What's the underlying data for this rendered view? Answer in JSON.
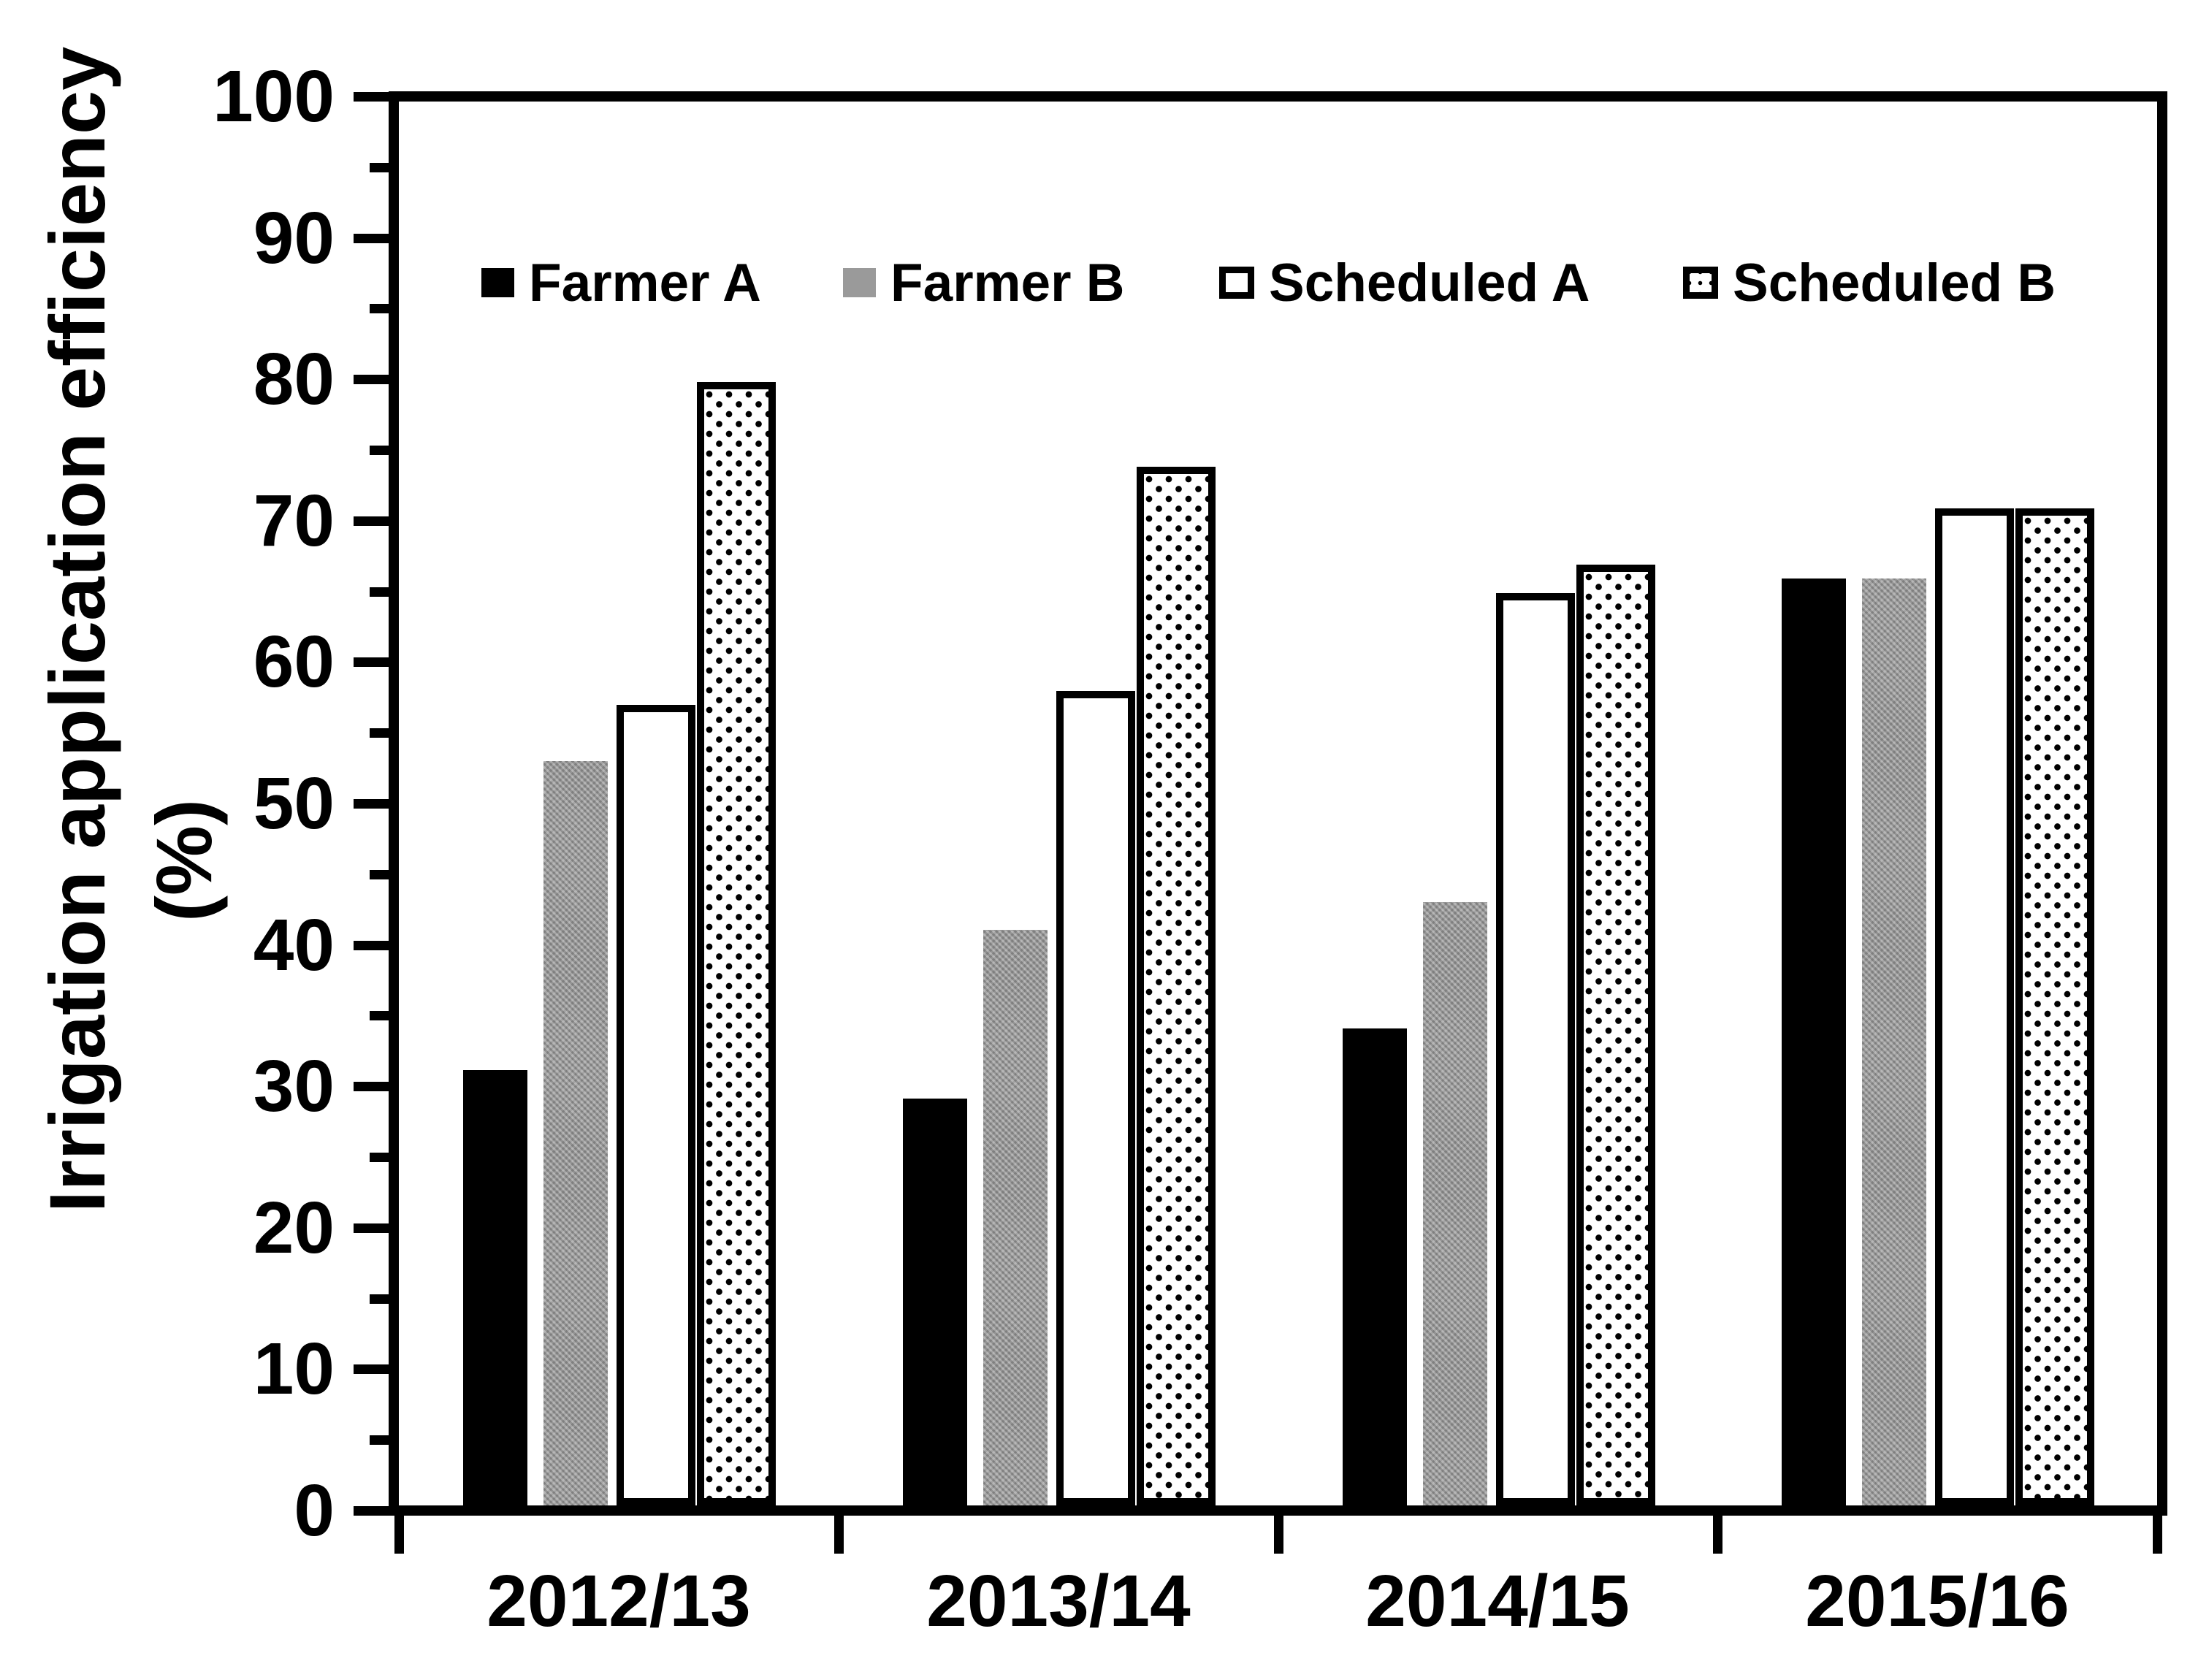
{
  "chart_data": {
    "type": "bar",
    "title": "",
    "categories": [
      "2012/13",
      "2013/14",
      "2014/15",
      "2015/16"
    ],
    "series": [
      {
        "name": "Farmer A",
        "style": "solid-black",
        "values": [
          31,
          29,
          34,
          66
        ]
      },
      {
        "name": "Farmer B",
        "style": "solid-gray",
        "values": [
          53,
          41,
          43,
          66
        ]
      },
      {
        "name": "Scheduled A",
        "style": "outline-white",
        "values": [
          57,
          58,
          65,
          71
        ]
      },
      {
        "name": "Scheduled B",
        "style": "outline-dotted",
        "values": [
          80,
          74,
          67,
          71
        ]
      }
    ],
    "ylabel_line1": "Irrigation application efficiency",
    "ylabel_line2": "(%)",
    "ylim": [
      0,
      100
    ],
    "ytick_major_step": 10,
    "ytick_minor_step": 5,
    "ytick_labels": [
      "0",
      "10",
      "20",
      "30",
      "40",
      "50",
      "60",
      "70",
      "80",
      "90",
      "100"
    ],
    "legend_position": "top-inside",
    "grid": false
  },
  "colors": {
    "bar_black": "#000000",
    "bar_gray": "#999999",
    "bar_white": "#ffffff",
    "outline": "#000000",
    "background": "#ffffff"
  }
}
